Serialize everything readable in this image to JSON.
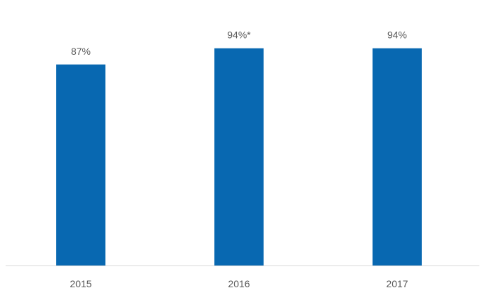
{
  "chart_data": {
    "type": "bar",
    "categories": [
      "2015",
      "2016",
      "2017"
    ],
    "values": [
      87,
      94,
      94
    ],
    "data_labels": [
      "87%",
      "94%*",
      "94%"
    ],
    "title": "",
    "xlabel": "",
    "ylabel": "",
    "ylim": [
      0,
      100
    ],
    "grid": false,
    "legend": "none",
    "colors": {
      "bar": "#0868b1",
      "axis": "#d9d9d9",
      "text": "#595959"
    }
  }
}
